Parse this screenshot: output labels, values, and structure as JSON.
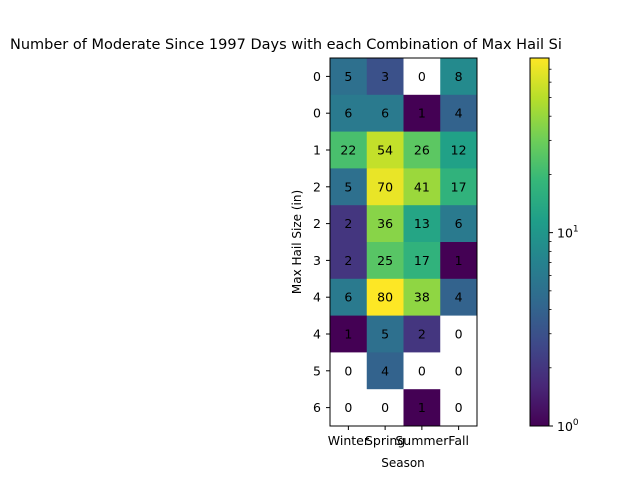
{
  "chart_data": {
    "type": "heatmap",
    "title": "Number of Moderate Since 1997 Days with each Combination of Max Hail Si",
    "xlabel": "Season",
    "ylabel": "Max Hail Size (in)",
    "x_categories": [
      "Winter",
      "Spring",
      "Summer",
      "Fall"
    ],
    "y_categories": [
      "0",
      "0",
      "1",
      "2",
      "2",
      "3",
      "4",
      "4",
      "5",
      "6"
    ],
    "values": [
      [
        5,
        3,
        0,
        8
      ],
      [
        6,
        6,
        1,
        4
      ],
      [
        22,
        54,
        26,
        12
      ],
      [
        5,
        70,
        41,
        17
      ],
      [
        2,
        36,
        13,
        6
      ],
      [
        2,
        25,
        17,
        1
      ],
      [
        6,
        80,
        38,
        4
      ],
      [
        1,
        5,
        2,
        0
      ],
      [
        0,
        4,
        0,
        0
      ],
      [
        0,
        0,
        1,
        0
      ]
    ],
    "color_scale": "log",
    "colormap": "viridis",
    "zero_color": "#ffffff",
    "vmin": 1,
    "vmax": 80,
    "colorbar": {
      "ticks": [
        {
          "base": "10",
          "exp": "0",
          "value": 1
        },
        {
          "base": "10",
          "exp": "1",
          "value": 10
        }
      ]
    },
    "grid": false
  }
}
